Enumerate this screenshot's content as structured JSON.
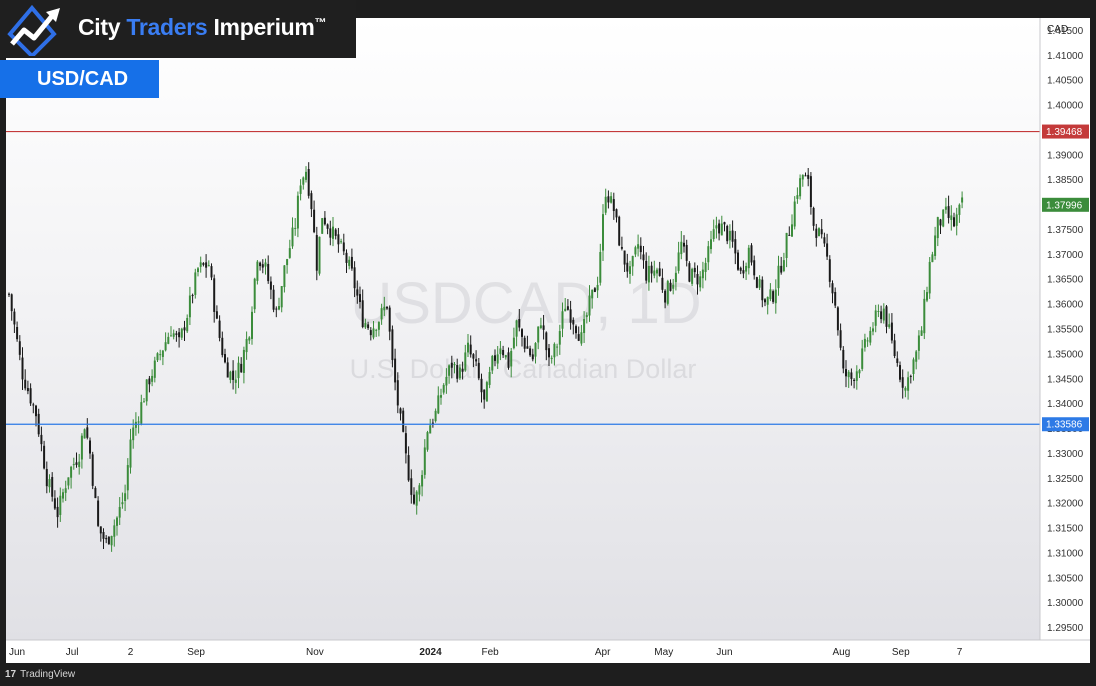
{
  "brand": {
    "name_part1": "City ",
    "name_part2": "Traders",
    "name_part3": " Imperium",
    "trademark": "™",
    "accent_color": "#3a7df2"
  },
  "symbol_badge": "USD/CAD",
  "watermark": {
    "symbol": "USDCAD, 1D",
    "description": "U.S. Dollar / Canadian Dollar"
  },
  "footer": {
    "logo_mark": "17",
    "platform": "TradingView"
  },
  "colors": {
    "up_candle": "#3b8c3b",
    "down_candle": "#1a1a1a",
    "resistance_line": "#c43a3a",
    "support_line": "#2d7ae6",
    "last_price_tag": "#3b8c3b"
  },
  "chart_data": {
    "type": "candlestick",
    "symbol": "USDCAD",
    "timeframe": "1D",
    "currency_label": "CAD",
    "ylim": [
      1.2925,
      1.4175
    ],
    "y_ticks": [
      1.415,
      1.41,
      1.405,
      1.4,
      1.395,
      1.39,
      1.385,
      1.38,
      1.375,
      1.37,
      1.365,
      1.36,
      1.355,
      1.35,
      1.345,
      1.34,
      1.335,
      1.33,
      1.325,
      1.32,
      1.315,
      1.31,
      1.305,
      1.3,
      1.295
    ],
    "y_tick_labels": [
      "1.41500",
      "1.41000",
      "1.40500",
      "1.40000",
      "1.39500",
      "1.39000",
      "1.38500",
      "1.38000",
      "1.37500",
      "1.37000",
      "1.36500",
      "1.36000",
      "1.35500",
      "1.35000",
      "1.34500",
      "1.34000",
      "1.33500",
      "1.33000",
      "1.32500",
      "1.32000",
      "1.31500",
      "1.31000",
      "1.30500",
      "1.30000",
      "1.29500"
    ],
    "x_labels": [
      {
        "label": "Jun",
        "bar": 0,
        "bold": false
      },
      {
        "label": "Jul",
        "bar": 21,
        "bold": false
      },
      {
        "label": "2",
        "bar": 44,
        "bold": false
      },
      {
        "label": "Sep",
        "bar": 66,
        "bold": false
      },
      {
        "label": "Nov",
        "bar": 110,
        "bold": false
      },
      {
        "label": "2024",
        "bar": 152,
        "bold": true
      },
      {
        "label": "Feb",
        "bar": 175,
        "bold": false
      },
      {
        "label": "Apr",
        "bar": 217,
        "bold": false
      },
      {
        "label": "May",
        "bar": 239,
        "bold": false
      },
      {
        "label": "Jun",
        "bar": 262,
        "bold": false
      },
      {
        "label": "Aug",
        "bar": 305,
        "bold": false
      },
      {
        "label": "Sep",
        "bar": 327,
        "bold": false
      },
      {
        "label": "7",
        "bar": 351,
        "bold": false
      }
    ],
    "horizontal_levels": [
      {
        "name": "resistance",
        "value": 1.39468,
        "label": "1.39468",
        "color": "#c43a3a"
      },
      {
        "name": "support",
        "value": 1.33586,
        "label": "1.33586",
        "color": "#2d7ae6"
      }
    ],
    "last_price": {
      "value": 1.37996,
      "label": "1.37996"
    },
    "total_bars": 362,
    "close_path": [
      [
        0,
        1.362
      ],
      [
        5,
        1.346
      ],
      [
        10,
        1.338
      ],
      [
        14,
        1.325
      ],
      [
        18,
        1.318
      ],
      [
        22,
        1.326
      ],
      [
        26,
        1.33
      ],
      [
        28,
        1.336
      ],
      [
        30,
        1.33
      ],
      [
        33,
        1.315
      ],
      [
        36,
        1.312
      ],
      [
        40,
        1.317
      ],
      [
        43,
        1.322
      ],
      [
        45,
        1.333
      ],
      [
        48,
        1.338
      ],
      [
        52,
        1.345
      ],
      [
        56,
        1.35
      ],
      [
        60,
        1.355
      ],
      [
        63,
        1.352
      ],
      [
        66,
        1.358
      ],
      [
        70,
        1.367
      ],
      [
        74,
        1.368
      ],
      [
        77,
        1.356
      ],
      [
        80,
        1.348
      ],
      [
        83,
        1.345
      ],
      [
        86,
        1.348
      ],
      [
        89,
        1.355
      ],
      [
        92,
        1.37
      ],
      [
        95,
        1.367
      ],
      [
        99,
        1.358
      ],
      [
        102,
        1.367
      ],
      [
        106,
        1.376
      ],
      [
        108,
        1.385
      ],
      [
        110,
        1.387
      ],
      [
        112,
        1.38
      ],
      [
        114,
        1.368
      ],
      [
        116,
        1.378
      ],
      [
        120,
        1.374
      ],
      [
        124,
        1.37
      ],
      [
        127,
        1.366
      ],
      [
        131,
        1.357
      ],
      [
        134,
        1.355
      ],
      [
        137,
        1.357
      ],
      [
        140,
        1.36
      ],
      [
        142,
        1.348
      ],
      [
        144,
        1.34
      ],
      [
        147,
        1.329
      ],
      [
        150,
        1.32
      ],
      [
        152,
        1.323
      ],
      [
        155,
        1.335
      ],
      [
        158,
        1.338
      ],
      [
        161,
        1.344
      ],
      [
        164,
        1.348
      ],
      [
        167,
        1.346
      ],
      [
        170,
        1.351
      ],
      [
        173,
        1.347
      ],
      [
        176,
        1.34
      ],
      [
        179,
        1.348
      ],
      [
        182,
        1.352
      ],
      [
        185,
        1.348
      ],
      [
        188,
        1.356
      ],
      [
        191,
        1.352
      ],
      [
        194,
        1.349
      ],
      [
        197,
        1.357
      ],
      [
        200,
        1.348
      ],
      [
        203,
        1.352
      ],
      [
        206,
        1.36
      ],
      [
        209,
        1.357
      ],
      [
        212,
        1.353
      ],
      [
        215,
        1.36
      ],
      [
        218,
        1.365
      ],
      [
        221,
        1.383
      ],
      [
        224,
        1.379
      ],
      [
        227,
        1.37
      ],
      [
        230,
        1.366
      ],
      [
        233,
        1.372
      ],
      [
        236,
        1.366
      ],
      [
        240,
        1.367
      ],
      [
        243,
        1.362
      ],
      [
        246,
        1.365
      ],
      [
        249,
        1.372
      ],
      [
        252,
        1.366
      ],
      [
        256,
        1.365
      ],
      [
        259,
        1.37
      ],
      [
        262,
        1.376
      ],
      [
        265,
        1.375
      ],
      [
        268,
        1.372
      ],
      [
        271,
        1.366
      ],
      [
        274,
        1.371
      ],
      [
        277,
        1.365
      ],
      [
        280,
        1.36
      ],
      [
        283,
        1.362
      ],
      [
        286,
        1.368
      ],
      [
        289,
        1.375
      ],
      [
        292,
        1.383
      ],
      [
        294,
        1.386
      ],
      [
        296,
        1.384
      ],
      [
        298,
        1.376
      ],
      [
        300,
        1.374
      ],
      [
        303,
        1.369
      ],
      [
        306,
        1.36
      ],
      [
        309,
        1.346
      ],
      [
        312,
        1.345
      ],
      [
        315,
        1.348
      ],
      [
        318,
        1.353
      ],
      [
        321,
        1.357
      ],
      [
        324,
        1.359
      ],
      [
        327,
        1.352
      ],
      [
        330,
        1.346
      ],
      [
        332,
        1.343
      ],
      [
        334,
        1.347
      ],
      [
        336,
        1.35
      ],
      [
        338,
        1.355
      ],
      [
        341,
        1.368
      ],
      [
        344,
        1.376
      ],
      [
        347,
        1.378
      ],
      [
        350,
        1.376
      ],
      [
        353,
        1.38
      ]
    ]
  }
}
